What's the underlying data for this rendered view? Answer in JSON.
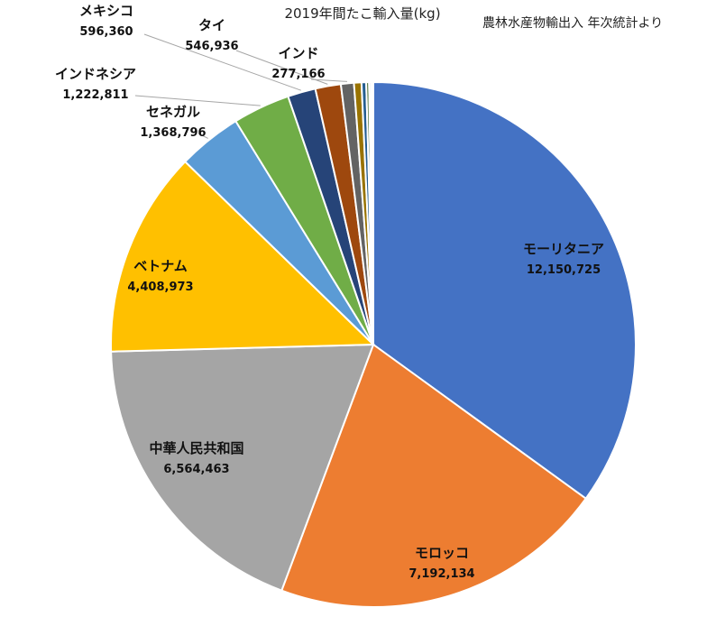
{
  "chart_data": {
    "type": "pie",
    "title": "2019年間たこ輸入量(kg)",
    "source_note": "農林水産物輸出入 年次統計より",
    "slices": [
      {
        "name": "モーリタニア",
        "value": 12150725,
        "value_label": "12,150,725",
        "color": "#4472C4"
      },
      {
        "name": "モロッコ",
        "value": 7192134,
        "value_label": "7,192,134",
        "color": "#ED7D31"
      },
      {
        "name": "中華人民共和国",
        "value": 6564463,
        "value_label": "6,564,463",
        "color": "#A5A5A5"
      },
      {
        "name": "ベトナム",
        "value": 4408973,
        "value_label": "4,408,973",
        "color": "#FFC000"
      },
      {
        "name": "セネガル",
        "value": 1368796,
        "value_label": "1,368,796",
        "color": "#5B9BD5"
      },
      {
        "name": "インドネシア",
        "value": 1222811,
        "value_label": "1,222,811",
        "color": "#70AD47"
      },
      {
        "name": "メキシコ",
        "value": 596360,
        "value_label": "596,360",
        "color": "#264478"
      },
      {
        "name": "タイ",
        "value": 546936,
        "value_label": "546,936",
        "color": "#9E480E"
      },
      {
        "name": "インド",
        "value": 277166,
        "value_label": "277,166",
        "color": "#636363"
      },
      {
        "name": "",
        "value": 160000,
        "value_label": "",
        "color": "#997300"
      },
      {
        "name": "",
        "value": 100000,
        "value_label": "",
        "color": "#255E91"
      },
      {
        "name": "",
        "value": 60000,
        "value_label": "",
        "color": "#43682B"
      },
      {
        "name": "",
        "value": 40000,
        "value_label": "",
        "color": "#698ED0"
      },
      {
        "name": "",
        "value": 30000,
        "value_label": "",
        "color": "#F1975A"
      },
      {
        "name": "",
        "value": 20000,
        "value_label": "",
        "color": "#B7B7B7"
      }
    ]
  }
}
